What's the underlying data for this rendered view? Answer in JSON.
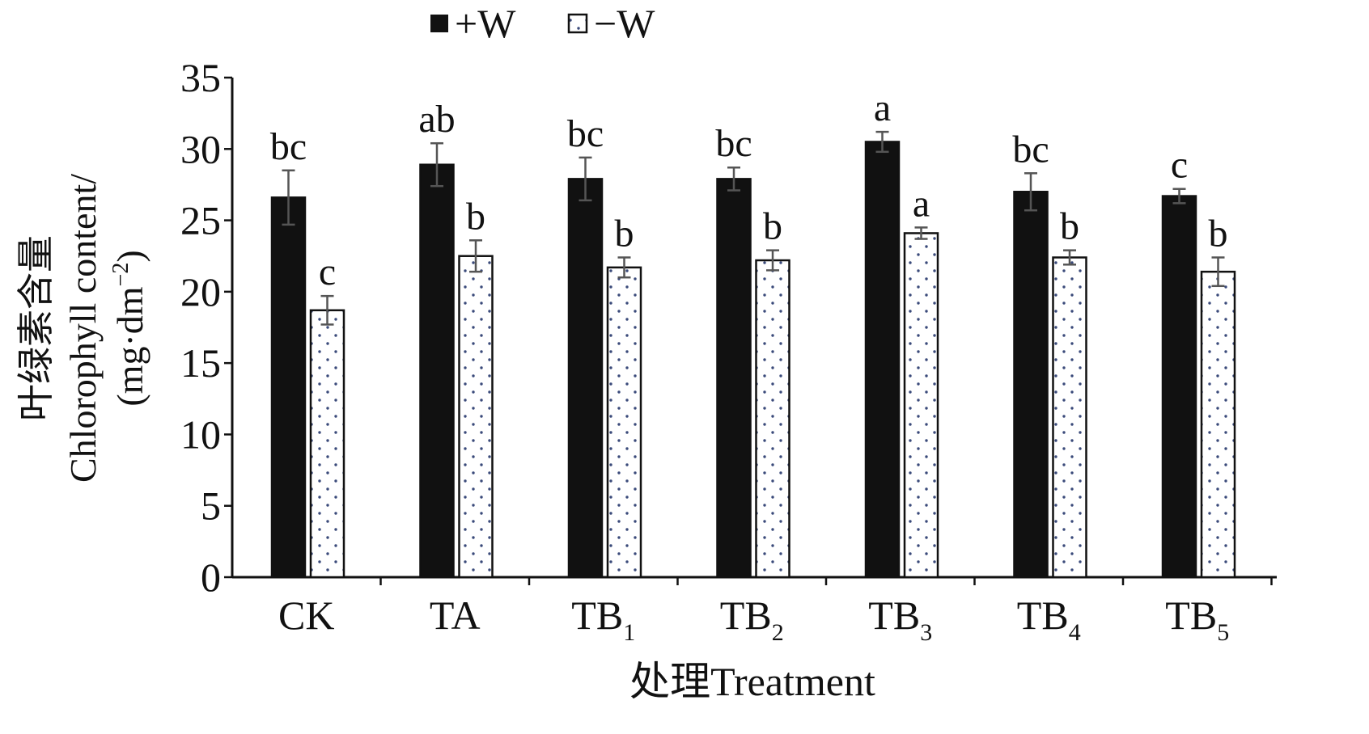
{
  "chart_data": {
    "type": "bar",
    "xlabel": "处理Treatment",
    "ylabel_line1": "叶绿素含量",
    "ylabel_line2": "Chlorophyll content/",
    "ylabel_line3_prefix": "(mg·dm",
    "ylabel_line3_sup": "−2",
    "ylabel_line3_suffix": ")",
    "ylim": [
      0,
      35
    ],
    "yticks": [
      "0",
      "5",
      "10",
      "15",
      "20",
      "25",
      "30",
      "35"
    ],
    "categories": [
      {
        "base": "CK",
        "sub": ""
      },
      {
        "base": "TA",
        "sub": ""
      },
      {
        "base": "TB",
        "sub": "1"
      },
      {
        "base": "TB",
        "sub": "2"
      },
      {
        "base": "TB",
        "sub": "3"
      },
      {
        "base": "TB",
        "sub": "4"
      },
      {
        "base": "TB",
        "sub": "5"
      }
    ],
    "series": [
      {
        "name": "+W",
        "color": "#111111",
        "pattern": "solid",
        "values": [
          26.6,
          28.9,
          27.9,
          27.9,
          30.5,
          27.0,
          26.7
        ],
        "errors": [
          1.9,
          1.5,
          1.5,
          0.8,
          0.7,
          1.3,
          0.5
        ],
        "labels": [
          "bc",
          "ab",
          "bc",
          "bc",
          "a",
          "bc",
          "c"
        ]
      },
      {
        "name": "−W",
        "color": "#ffffff",
        "pattern": "dots",
        "values": [
          18.7,
          22.5,
          21.7,
          22.2,
          24.1,
          22.4,
          21.4
        ],
        "errors": [
          1.0,
          1.1,
          0.7,
          0.7,
          0.4,
          0.5,
          1.0
        ],
        "labels": [
          "c",
          "b",
          "b",
          "b",
          "a",
          "b",
          "b"
        ]
      }
    ],
    "legend": "top"
  }
}
